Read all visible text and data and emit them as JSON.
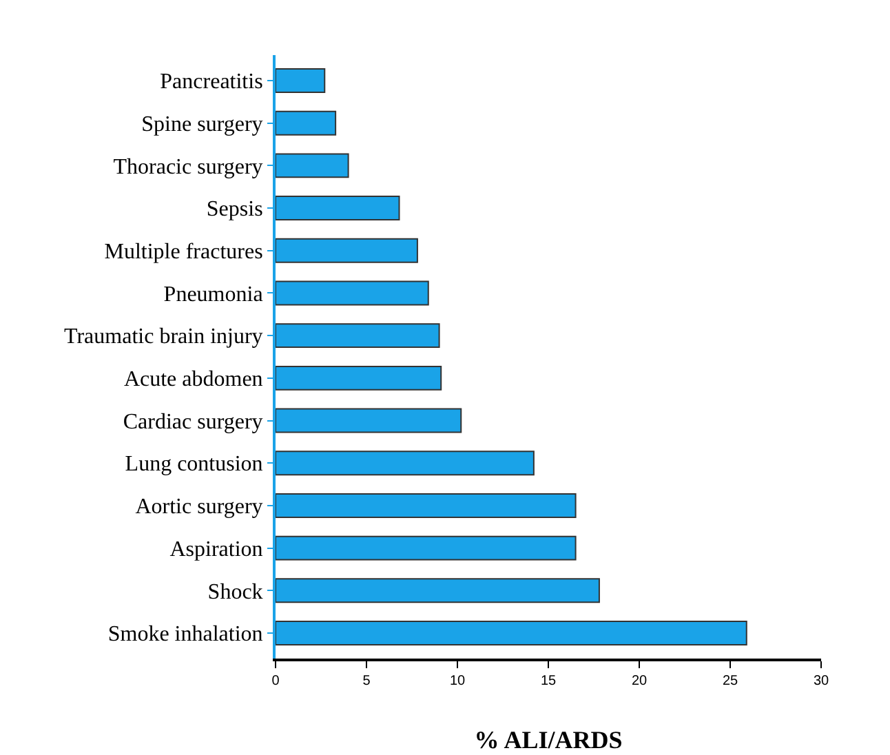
{
  "chart_data": {
    "type": "bar",
    "orientation": "horizontal",
    "xlabel": "% ALI/ARDS",
    "categories": [
      "Pancreatitis",
      "Spine surgery",
      "Thoracic surgery",
      "Sepsis",
      "Multiple fractures",
      "Pneumonia",
      "Traumatic brain injury",
      "Acute abdomen",
      "Cardiac surgery",
      "Lung contusion",
      "Aortic surgery",
      "Aspiration",
      "Shock",
      "Smoke inhalation"
    ],
    "values": [
      2.7,
      3.3,
      4.0,
      6.8,
      7.8,
      8.4,
      9.0,
      9.1,
      10.2,
      14.2,
      16.5,
      16.5,
      17.8,
      25.9
    ],
    "color": "#1aa3e8",
    "xlim": [
      0,
      30
    ],
    "xticks": [
      0,
      5,
      10,
      15,
      20,
      25,
      30
    ]
  }
}
